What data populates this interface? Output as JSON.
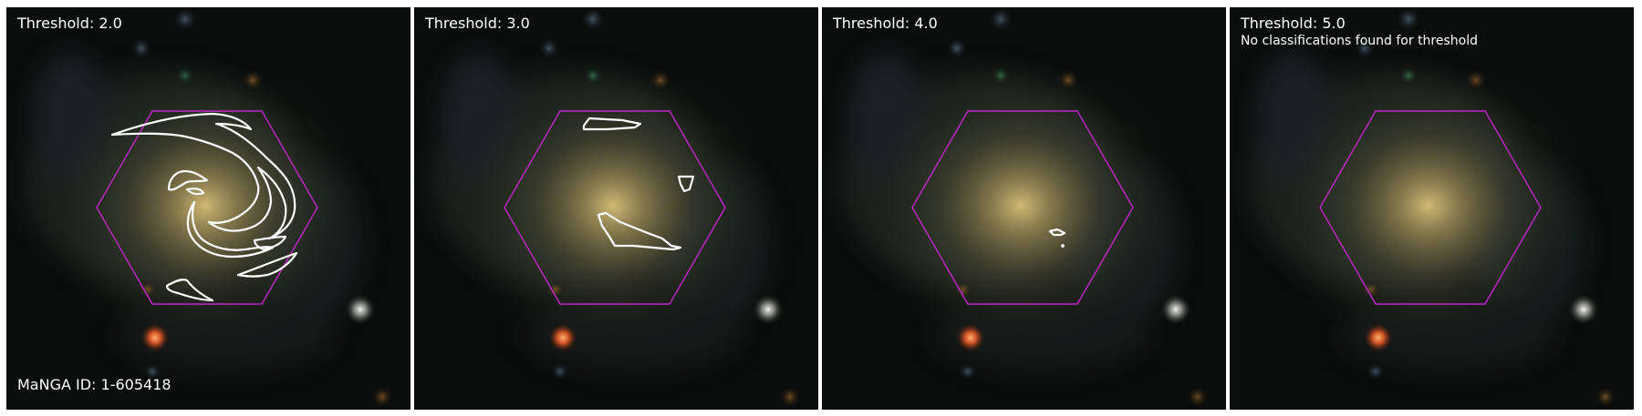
{
  "figure": {
    "panels": [
      {
        "title": "Threshold: 2.0"
      },
      {
        "title": "Threshold: 3.0"
      },
      {
        "title": "Threshold: 4.0"
      },
      {
        "title": "Threshold: 5.0",
        "note": "No classifications found for threshold"
      }
    ],
    "manga_id_label": "MaNGA ID: 1-605418"
  },
  "colors": {
    "hexagon": "#c026c8",
    "contour": "#ffffff",
    "background": "#0b0d0c",
    "galaxy_core": "#c9b06a"
  }
}
